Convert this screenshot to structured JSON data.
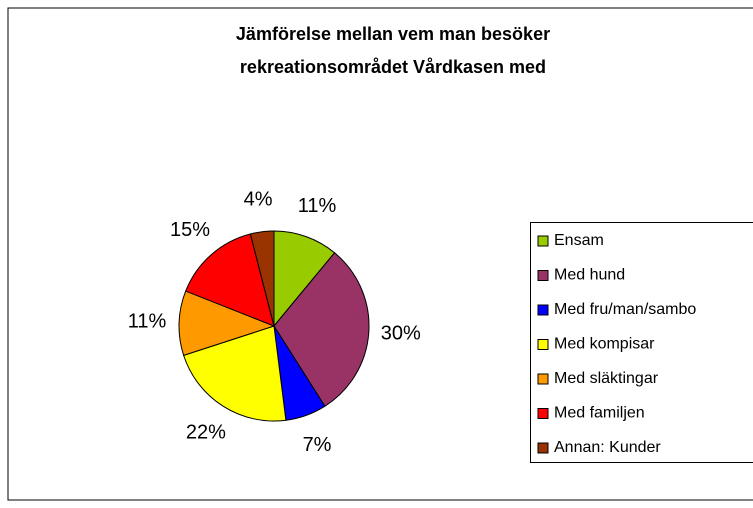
{
  "chart_data": {
    "type": "pie",
    "title": [
      "Jämförelse mellan vem man besöker",
      "rekreationsområdet Vårdkasen med"
    ],
    "categories": [
      "Ensam",
      "Med hund",
      "Med fru/man/sambo",
      "Med kompisar",
      "Med släktingar",
      "Med familjen",
      "Annan: Kunder"
    ],
    "values": [
      11,
      30,
      7,
      22,
      11,
      15,
      4
    ],
    "value_labels": [
      "11%",
      "30%",
      "7%",
      "22%",
      "11%",
      "15%",
      "4%"
    ],
    "colors": [
      "#99cc00",
      "#993366",
      "#0000ff",
      "#ffff00",
      "#ff9900",
      "#ff0000",
      "#993300"
    ],
    "legend": "right"
  }
}
